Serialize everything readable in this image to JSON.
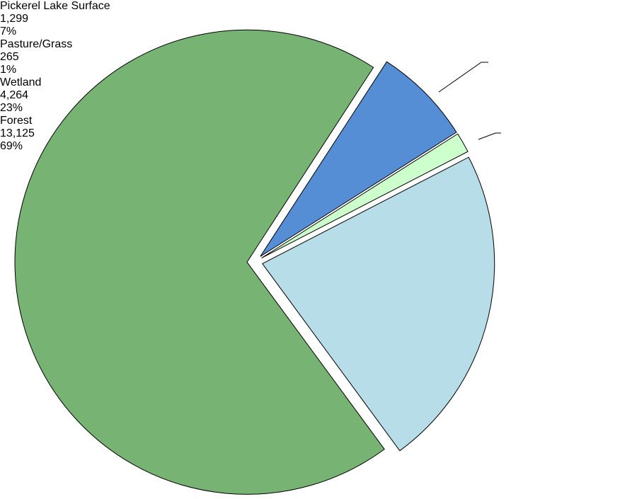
{
  "chart_data": {
    "type": "pie",
    "categories": [
      "Pickerel Lake Surface",
      "Pasture/Grass",
      "Wetland",
      "Forest"
    ],
    "values": [
      1299,
      265,
      4264,
      13125
    ],
    "value_labels": [
      "1,299",
      "265",
      "4,264",
      "13,125"
    ],
    "percents": [
      7,
      1,
      23,
      69
    ],
    "percent_labels": [
      "7%",
      "1%",
      "23%",
      "69%"
    ],
    "colors": [
      "#558ed5",
      "#ccffcc",
      "#b7dde8",
      "#77b373"
    ]
  }
}
